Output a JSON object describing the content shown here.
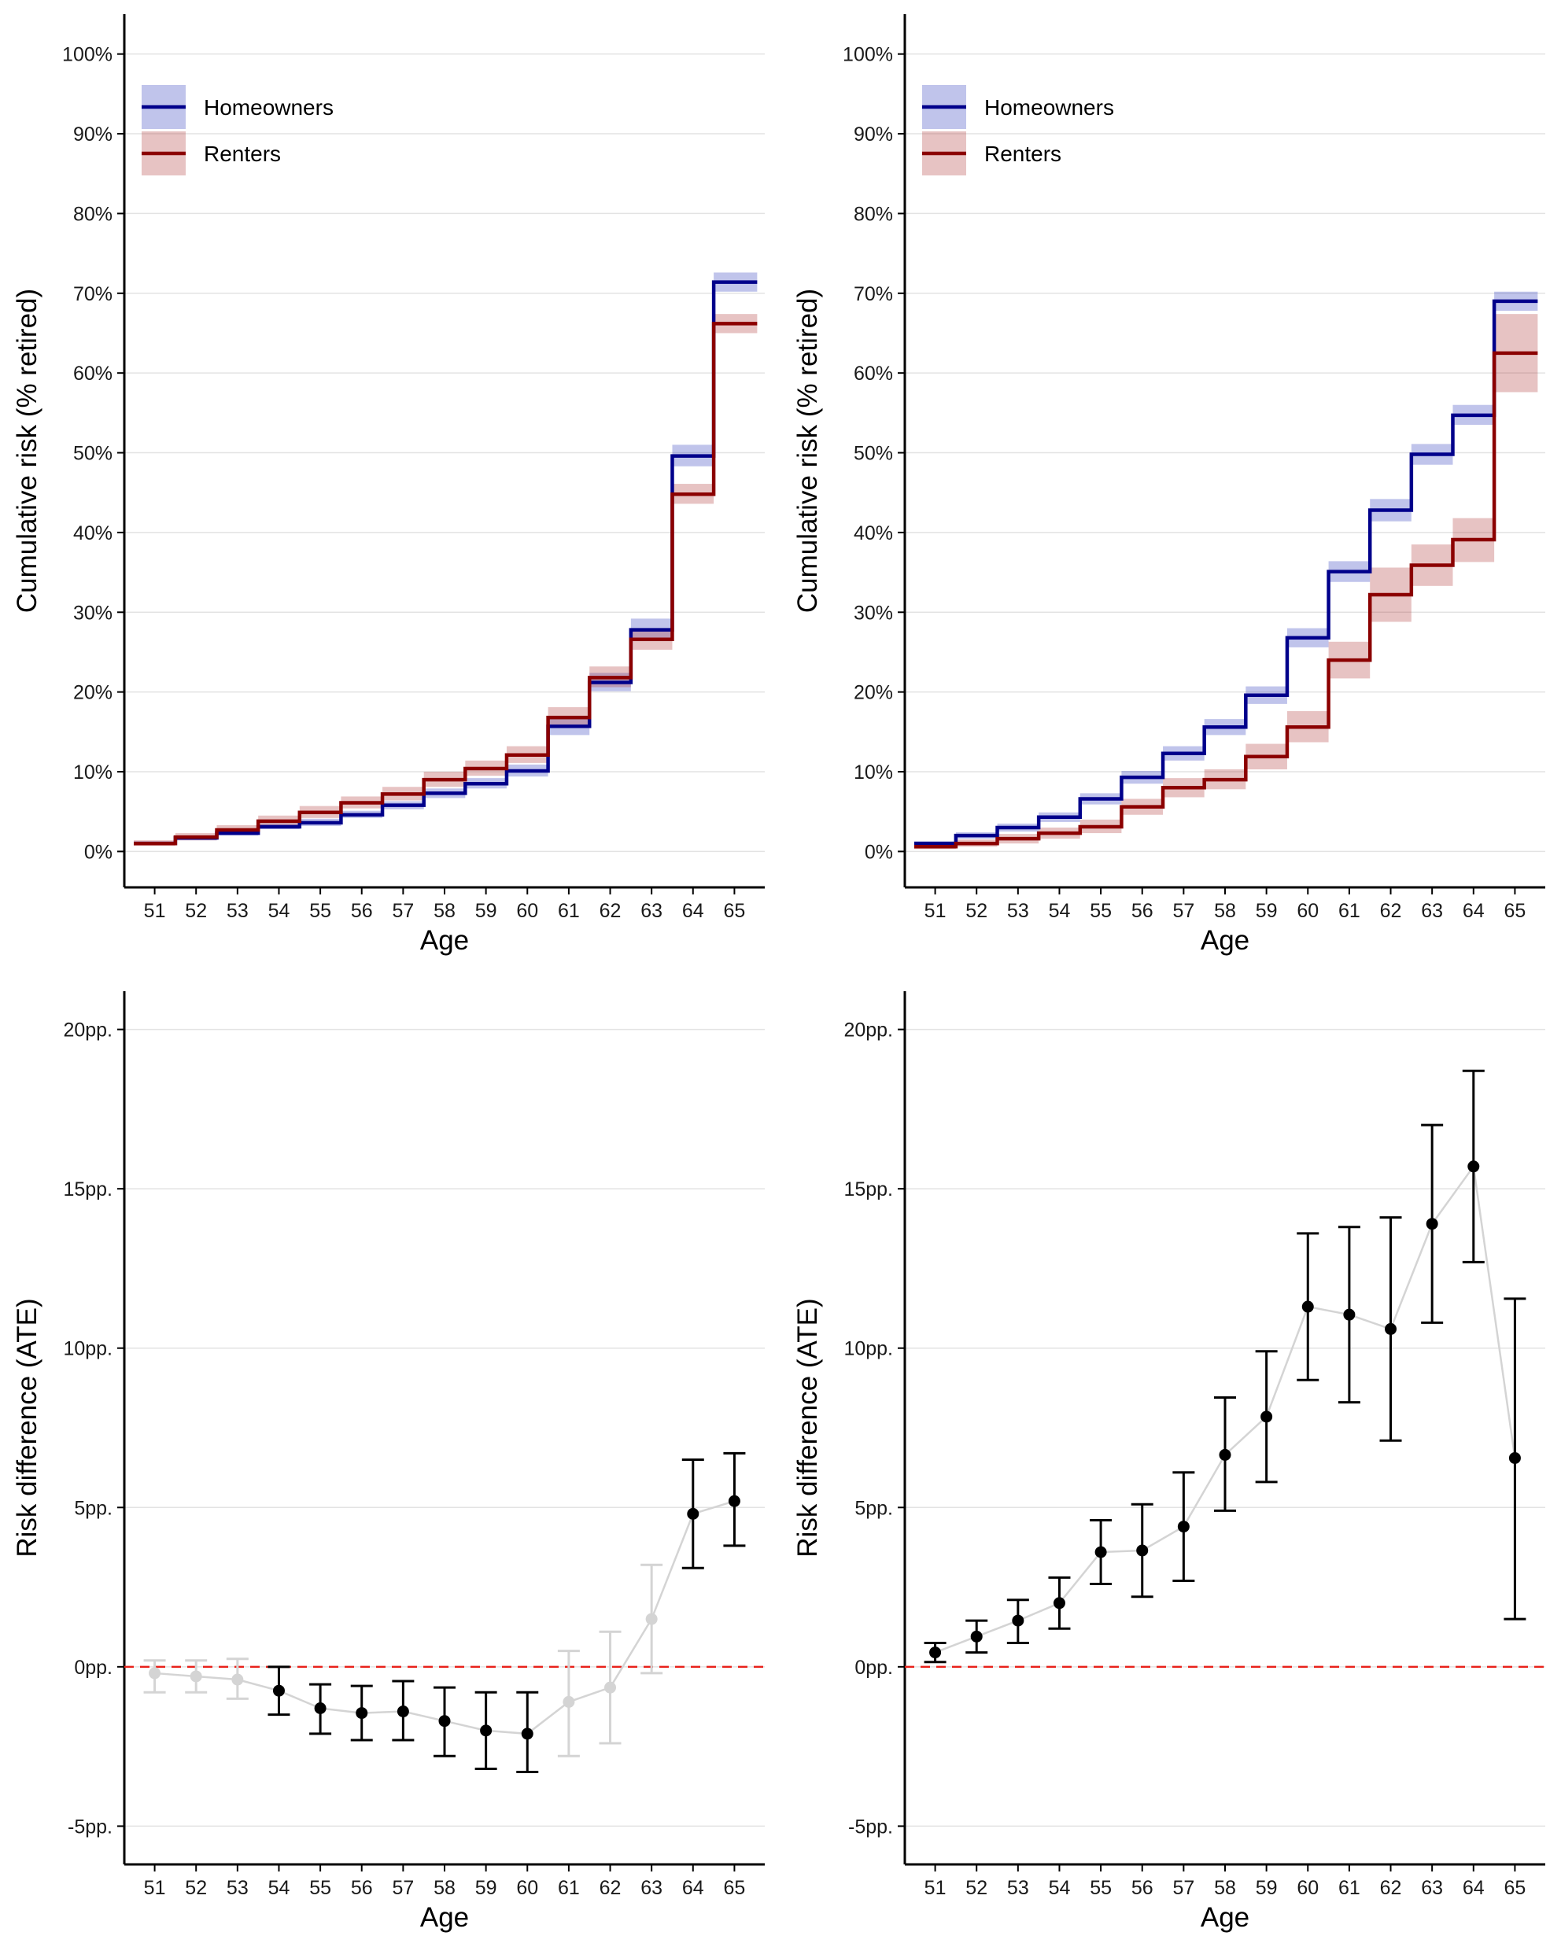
{
  "colors": {
    "homeowners": "#00008B",
    "renters": "#8B0000",
    "homeowners_band": "#2E3DBD",
    "renters_band": "#B03838",
    "grid": "#e3e3e3",
    "axis": "#000000",
    "reference_line": "#e8221b",
    "significant_point": "#000000",
    "insignificant_point": "#d4d4d4",
    "connector_line": "#d4d4d4"
  },
  "chart_data": [
    {
      "type": "line",
      "step": true,
      "position": "top-left",
      "xlabel": "Age",
      "ylabel": "Cumulative risk (% retired)",
      "ylim": [
        -4.5,
        105
      ],
      "yticks": [
        0,
        10,
        20,
        30,
        40,
        50,
        60,
        70,
        80,
        90,
        100
      ],
      "ytick_labels": [
        "0%",
        "10%",
        "20%",
        "30%",
        "40%",
        "50%",
        "60%",
        "70%",
        "80%",
        "90%",
        "100%"
      ],
      "x": [
        51,
        52,
        53,
        54,
        55,
        56,
        57,
        58,
        59,
        60,
        61,
        62,
        63,
        64,
        65
      ],
      "grid": "horizontal",
      "legend": {
        "placement": "top-left",
        "entries": [
          "Homeowners",
          "Renters"
        ]
      },
      "series": [
        {
          "name": "Homeowners",
          "values": [
            1.0,
            1.7,
            2.3,
            3.1,
            3.6,
            4.6,
            5.8,
            7.3,
            8.5,
            10.1,
            15.7,
            21.2,
            27.8,
            49.6,
            71.4
          ],
          "lower": [
            0.8,
            1.4,
            2.0,
            2.8,
            3.2,
            4.2,
            5.3,
            6.7,
            7.9,
            9.4,
            14.6,
            20.1,
            26.5,
            48.3,
            70.2
          ],
          "upper": [
            1.3,
            2.0,
            2.7,
            3.5,
            4.1,
            5.1,
            6.3,
            7.9,
            9.2,
            10.9,
            16.8,
            22.4,
            29.2,
            51.0,
            72.6
          ]
        },
        {
          "name": "Renters",
          "values": [
            1.0,
            1.8,
            2.7,
            3.8,
            4.9,
            6.1,
            7.2,
            9.0,
            10.4,
            12.1,
            16.8,
            21.8,
            26.6,
            44.8,
            66.2
          ],
          "lower": [
            0.7,
            1.4,
            2.2,
            3.2,
            4.2,
            5.4,
            6.4,
            8.1,
            9.5,
            11.1,
            15.6,
            20.6,
            25.3,
            43.6,
            65.0
          ],
          "upper": [
            1.4,
            2.3,
            3.3,
            4.5,
            5.7,
            6.9,
            8.1,
            10.0,
            11.4,
            13.2,
            18.1,
            23.2,
            28.0,
            46.1,
            67.4
          ]
        }
      ]
    },
    {
      "type": "line",
      "step": true,
      "position": "top-right",
      "xlabel": "Age",
      "ylabel": "Cumulative risk (% retired)",
      "ylim": [
        -4.5,
        105
      ],
      "yticks": [
        0,
        10,
        20,
        30,
        40,
        50,
        60,
        70,
        80,
        90,
        100
      ],
      "ytick_labels": [
        "0%",
        "10%",
        "20%",
        "30%",
        "40%",
        "50%",
        "60%",
        "70%",
        "80%",
        "90%",
        "100%"
      ],
      "x": [
        51,
        52,
        53,
        54,
        55,
        56,
        57,
        58,
        59,
        60,
        61,
        62,
        63,
        64,
        65
      ],
      "grid": "horizontal",
      "legend": {
        "placement": "top-left",
        "entries": [
          "Homeowners",
          "Renters"
        ]
      },
      "series": [
        {
          "name": "Homeowners",
          "values": [
            1.0,
            2.0,
            3.0,
            4.3,
            6.6,
            9.3,
            12.3,
            15.6,
            19.6,
            26.8,
            35.1,
            42.8,
            49.8,
            54.7,
            69.0
          ],
          "lower": [
            0.7,
            1.6,
            2.5,
            3.7,
            5.9,
            8.5,
            11.4,
            14.6,
            18.5,
            25.6,
            33.8,
            41.4,
            48.5,
            53.5,
            67.8
          ],
          "upper": [
            1.3,
            2.4,
            3.5,
            4.9,
            7.3,
            10.1,
            13.2,
            16.6,
            20.7,
            28.0,
            36.4,
            44.2,
            51.1,
            56.0,
            70.2
          ]
        },
        {
          "name": "Renters",
          "values": [
            0.6,
            1.0,
            1.6,
            2.3,
            3.1,
            5.6,
            8.0,
            9.0,
            11.9,
            15.6,
            24.0,
            32.2,
            35.9,
            39.1,
            62.5
          ],
          "lower": [
            0.3,
            0.6,
            1.0,
            1.6,
            2.3,
            4.6,
            6.8,
            7.8,
            10.3,
            13.7,
            21.7,
            28.8,
            33.3,
            36.3,
            57.6
          ],
          "upper": [
            1.0,
            1.5,
            2.2,
            3.0,
            4.0,
            6.6,
            9.2,
            10.3,
            13.5,
            17.6,
            26.3,
            35.6,
            38.5,
            41.8,
            67.4
          ]
        }
      ]
    },
    {
      "type": "scatter",
      "position": "bottom-left",
      "xlabel": "Age",
      "ylabel": "Risk difference (ATE)",
      "ylim": [
        -6.2,
        21.2
      ],
      "yticks": [
        -5,
        0,
        5,
        10,
        15,
        20
      ],
      "ytick_labels": [
        "-5pp.",
        "0pp.",
        "5pp.",
        "10pp.",
        "15pp.",
        "20pp."
      ],
      "x": [
        51,
        52,
        53,
        54,
        55,
        56,
        57,
        58,
        59,
        60,
        61,
        62,
        63,
        64,
        65
      ],
      "grid": "horizontal",
      "reference_line": 0,
      "points": {
        "estimate": [
          -0.2,
          -0.3,
          -0.4,
          -0.75,
          -1.3,
          -1.45,
          -1.4,
          -1.7,
          -2.0,
          -2.1,
          -1.1,
          -0.65,
          1.5,
          4.8,
          5.2
        ],
        "lower": [
          -0.8,
          -0.8,
          -1.0,
          -1.5,
          -2.1,
          -2.3,
          -2.3,
          -2.8,
          -3.2,
          -3.3,
          -2.8,
          -2.4,
          -0.2,
          3.1,
          3.8
        ],
        "upper": [
          0.2,
          0.2,
          0.25,
          0.0,
          -0.55,
          -0.6,
          -0.45,
          -0.65,
          -0.8,
          -0.8,
          0.5,
          1.1,
          3.2,
          6.5,
          6.7
        ],
        "significant": [
          false,
          false,
          false,
          true,
          true,
          true,
          true,
          true,
          true,
          true,
          false,
          false,
          false,
          true,
          true
        ]
      }
    },
    {
      "type": "scatter",
      "position": "bottom-right",
      "xlabel": "Age",
      "ylabel": "Risk difference (ATE)",
      "ylim": [
        -6.2,
        21.2
      ],
      "yticks": [
        -5,
        0,
        5,
        10,
        15,
        20
      ],
      "ytick_labels": [
        "-5pp.",
        "0pp.",
        "5pp.",
        "10pp.",
        "15pp.",
        "20pp."
      ],
      "x": [
        51,
        52,
        53,
        54,
        55,
        56,
        57,
        58,
        59,
        60,
        61,
        62,
        63,
        64,
        65
      ],
      "grid": "horizontal",
      "reference_line": 0,
      "points": {
        "estimate": [
          0.45,
          0.95,
          1.45,
          2.0,
          3.6,
          3.65,
          4.4,
          6.65,
          7.85,
          11.3,
          11.05,
          10.6,
          13.9,
          15.7,
          6.55
        ],
        "lower": [
          0.15,
          0.45,
          0.75,
          1.2,
          2.6,
          2.2,
          2.7,
          4.9,
          5.8,
          9.0,
          8.3,
          7.1,
          10.8,
          12.7,
          1.5
        ],
        "upper": [
          0.75,
          1.45,
          2.1,
          2.8,
          4.6,
          5.1,
          6.1,
          8.45,
          9.9,
          13.6,
          13.8,
          14.1,
          17.0,
          18.7,
          11.55
        ],
        "significant": [
          true,
          true,
          true,
          true,
          true,
          true,
          true,
          true,
          true,
          true,
          true,
          true,
          true,
          true,
          true
        ]
      }
    }
  ]
}
